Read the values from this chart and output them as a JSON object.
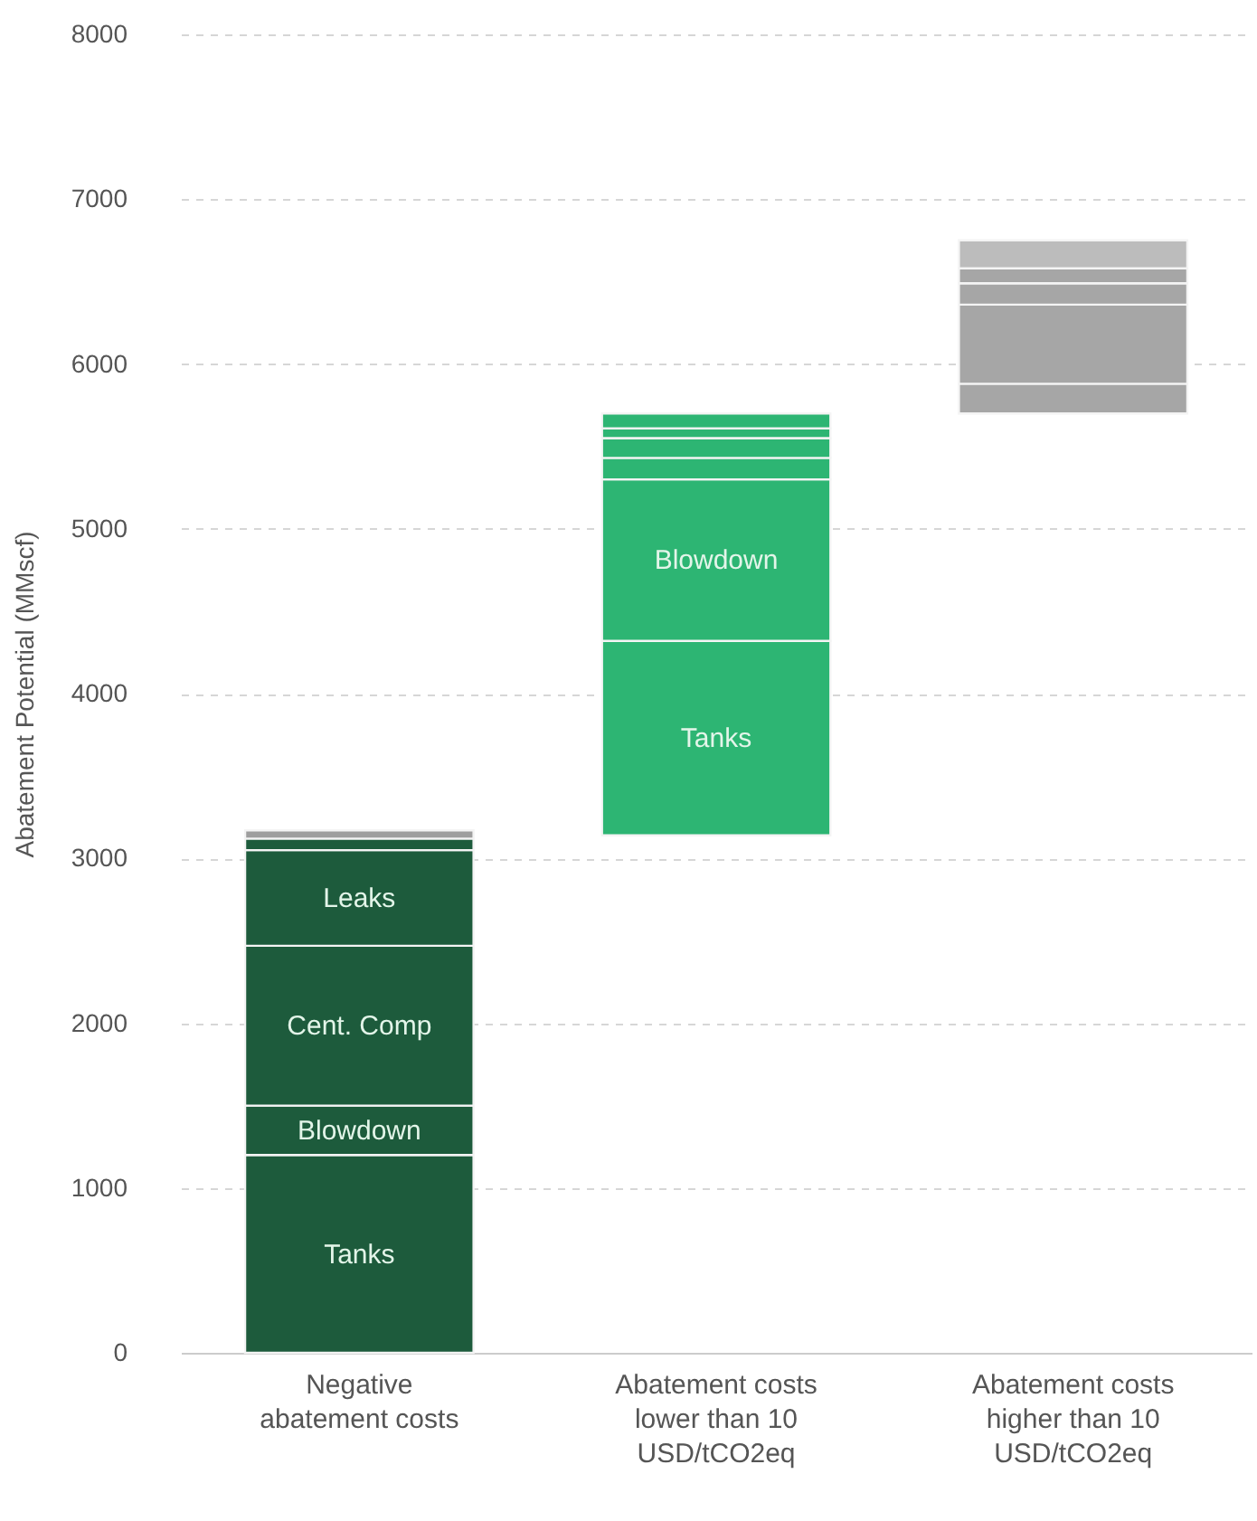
{
  "chart_data": {
    "type": "bar",
    "ylabel": "Abatement Potential (MMscf)",
    "categories": [
      "Negative abatement costs",
      "Abatement costs lower than 10 USD/tCO2eq",
      "Abatement costs higher than 10 USD/tCO2eq"
    ],
    "series": [
      {
        "name": "Tanks",
        "base": [
          0,
          3140,
          null
        ],
        "values": [
          1200,
          1180,
          null
        ],
        "colors": [
          "#1d5b3c",
          "#2db573",
          null
        ]
      },
      {
        "name": "Blowdown",
        "base": [
          1200,
          4320,
          null
        ],
        "values": [
          300,
          980,
          null
        ],
        "colors": [
          "#1d5b3c",
          "#2db573",
          null
        ]
      },
      {
        "name": "Cent. Comp",
        "base": [
          1500,
          null,
          null
        ],
        "values": [
          970,
          null,
          null
        ],
        "colors": [
          "#1d5b3c",
          null,
          null
        ]
      },
      {
        "name": "Leaks",
        "base": [
          2470,
          null,
          null
        ],
        "values": [
          580,
          null,
          null
        ],
        "colors": [
          "#1d5b3c",
          null,
          null
        ]
      },
      {
        "base": [
          3050,
          5300,
          5700
        ],
        "values": [
          70,
          130,
          180
        ],
        "colors": [
          "#1d5b3c",
          "#2db573",
          "#a6a6a6"
        ]
      },
      {
        "base": [
          3120,
          5430,
          5880
        ],
        "values": [
          50,
          120,
          480
        ],
        "colors": [
          "#9e9e9e",
          "#2db573",
          "#a6a6a6"
        ]
      },
      {
        "base": [
          null,
          5550,
          6360
        ],
        "values": [
          null,
          60,
          130
        ],
        "colors": [
          null,
          "#2db573",
          "#a6a6a6"
        ]
      },
      {
        "base": [
          null,
          5610,
          6490
        ],
        "values": [
          null,
          90,
          90
        ],
        "colors": [
          null,
          "#2db573",
          "#a6a6a6"
        ]
      },
      {
        "base": [
          null,
          null,
          6580
        ],
        "values": [
          null,
          null,
          170
        ],
        "colors": [
          null,
          null,
          "#bcbcbc"
        ]
      }
    ],
    "ylim": [
      0,
      8000
    ],
    "yticks": [
      0,
      1000,
      2000,
      3000,
      4000,
      5000,
      6000,
      7000,
      8000
    ],
    "grid": "y"
  }
}
